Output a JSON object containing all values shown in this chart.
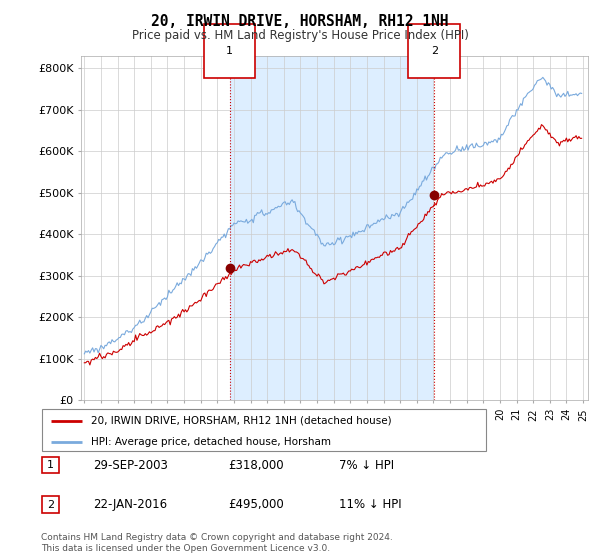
{
  "title": "20, IRWIN DRIVE, HORSHAM, RH12 1NH",
  "subtitle": "Price paid vs. HM Land Registry's House Price Index (HPI)",
  "legend_label_red": "20, IRWIN DRIVE, HORSHAM, RH12 1NH (detached house)",
  "legend_label_blue": "HPI: Average price, detached house, Horsham",
  "transaction1_date": "29-SEP-2003",
  "transaction1_price": "£318,000",
  "transaction1_hpi": "7% ↓ HPI",
  "transaction2_date": "22-JAN-2016",
  "transaction2_price": "£495,000",
  "transaction2_hpi": "11% ↓ HPI",
  "footer": "Contains HM Land Registry data © Crown copyright and database right 2024.\nThis data is licensed under the Open Government Licence v3.0.",
  "marker1_x": 2003.75,
  "marker1_y": 318000,
  "marker2_x": 2016.05,
  "marker2_y": 495000,
  "ylim": [
    0,
    830000
  ],
  "xlim": [
    1994.8,
    2025.3
  ],
  "yticks": [
    0,
    100000,
    200000,
    300000,
    400000,
    500000,
    600000,
    700000,
    800000
  ],
  "ytick_labels": [
    "£0",
    "£100K",
    "£200K",
    "£300K",
    "£400K",
    "£500K",
    "£600K",
    "£700K",
    "£800K"
  ],
  "color_red": "#cc0000",
  "color_blue": "#7aaadd",
  "color_dashed": "#cc0000",
  "shade_color": "#ddeeff",
  "background_color": "#ffffff",
  "grid_color": "#cccccc"
}
